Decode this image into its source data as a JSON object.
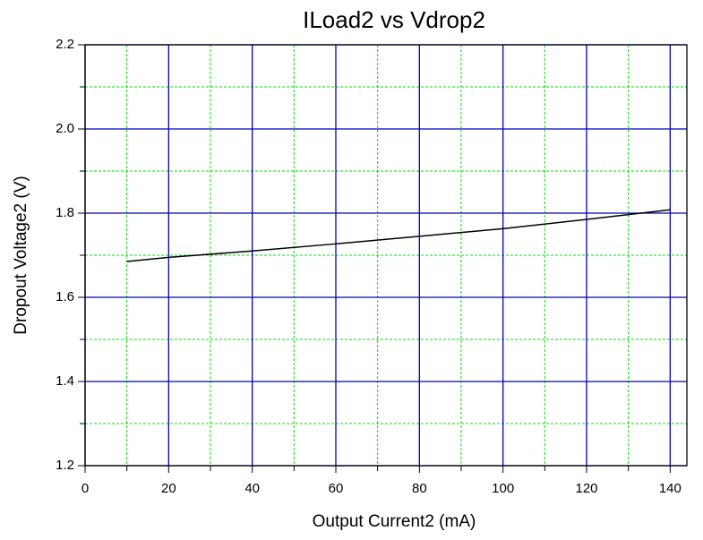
{
  "chart_data": {
    "type": "line",
    "title": "ILoad2 vs Vdrop2",
    "x_label": "Output Current2 (mA)",
    "y_label": "Dropout Voltage2 (V)",
    "x": [
      10,
      20,
      40,
      60,
      80,
      100,
      120,
      140
    ],
    "series": [
      {
        "name": "Vdrop2",
        "color": "#000000",
        "values": [
          1.685,
          1.695,
          1.71,
          1.727,
          1.745,
          1.763,
          1.785,
          1.808
        ]
      }
    ],
    "xlim": [
      0,
      144
    ],
    "xticks": [
      0,
      20,
      40,
      60,
      80,
      100,
      120,
      140
    ],
    "xminorticks": [
      10,
      30,
      50,
      70,
      90,
      110,
      130
    ],
    "ylim": [
      1.2,
      2.2
    ],
    "yticks": [
      1.2,
      1.4,
      1.6,
      1.8,
      {
        "value": 2,
        "label": "2.0"
      },
      2.2
    ],
    "yminorticks": [
      1.3,
      1.5,
      1.7,
      1.9,
      2.1
    ],
    "grid": true,
    "major_grid_color": "#0000c0",
    "minor_grid_color": "#00e000"
  }
}
